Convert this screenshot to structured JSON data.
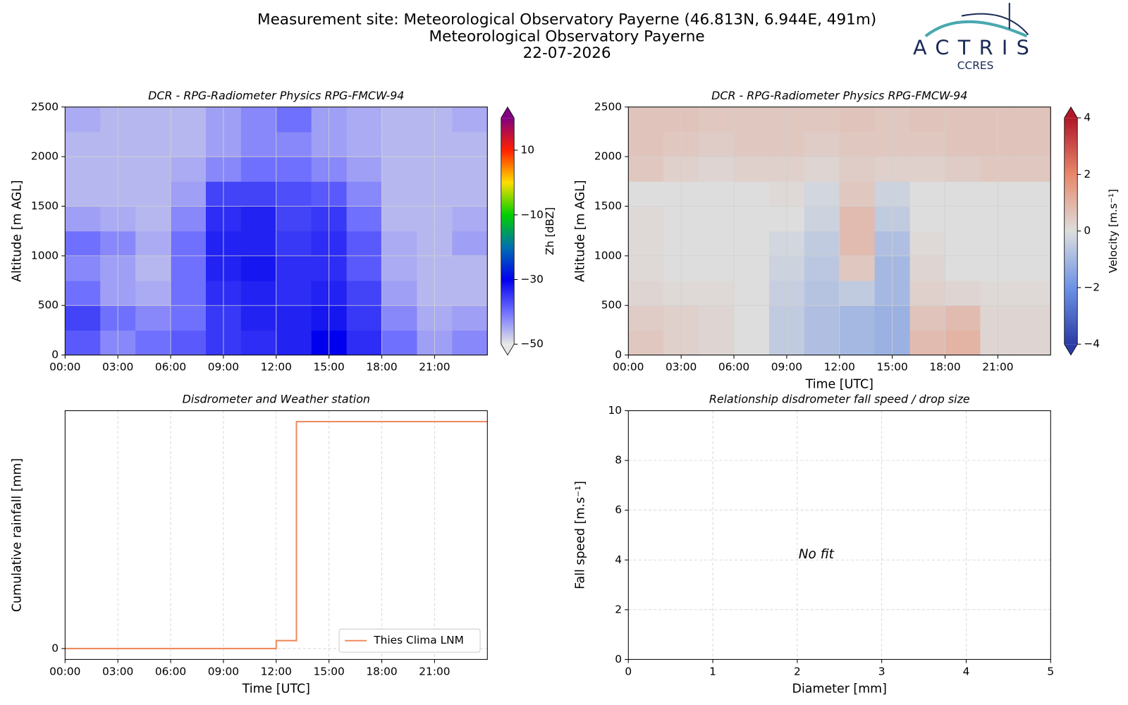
{
  "header": {
    "title_lines": [
      "Measurement site: Meteorological Observatory Payerne (46.813N, 6.944E, 491m)",
      "Meteorological Observatory Payerne",
      "22-07-2026"
    ],
    "logo": {
      "name": "ACTRIS",
      "subtitle": "CCRES"
    }
  },
  "chart_data": [
    {
      "type": "heatmap",
      "title": "DCR - RPG-Radiometer Physics RPG-FMCW-94",
      "ylabel": "Altitude [m AGL]",
      "xlim": [
        0,
        24
      ],
      "xticks": [
        {
          "value": 0,
          "label": "00:00"
        },
        {
          "value": 3,
          "label": "03:00"
        },
        {
          "value": 6,
          "label": "06:00"
        },
        {
          "value": 9,
          "label": "09:00"
        },
        {
          "value": 12,
          "label": "12:00"
        },
        {
          "value": 15,
          "label": "15:00"
        },
        {
          "value": 18,
          "label": "18:00"
        },
        {
          "value": 21,
          "label": "21:00"
        }
      ],
      "ylim": [
        0,
        2500
      ],
      "yticks": [
        0,
        500,
        1000,
        1500,
        2000,
        2500
      ],
      "grid": true,
      "grid_style": "solid",
      "xbins": [
        0,
        2,
        4,
        6,
        8,
        10,
        12,
        14,
        16,
        18,
        20,
        22,
        24
      ],
      "ybins": [
        0,
        250,
        500,
        750,
        1000,
        1250,
        1500,
        1750,
        2000,
        2250,
        2500
      ],
      "z": [
        [
          -38,
          -42,
          -40,
          -38,
          -35,
          -34,
          -33,
          -30,
          -34,
          -40,
          -44,
          -42
        ],
        [
          -36,
          -40,
          -42,
          -40,
          -35,
          -33,
          -33,
          -32,
          -35,
          -42,
          -45,
          -44
        ],
        [
          -40,
          -44,
          -45,
          -40,
          -34,
          -33,
          -34,
          -33,
          -36,
          -44,
          -46,
          -46
        ],
        [
          -42,
          -44,
          -46,
          -40,
          -33,
          -32,
          -34,
          -34,
          -38,
          -45,
          -46,
          -46
        ],
        [
          -40,
          -42,
          -45,
          -40,
          -33,
          -33,
          -35,
          -34,
          -38,
          -45,
          -46,
          -44
        ],
        [
          -44,
          -45,
          -46,
          -42,
          -34,
          -33,
          -36,
          -35,
          -40,
          -46,
          -46,
          -45
        ],
        [
          -46,
          -46,
          -46,
          -44,
          -36,
          -36,
          -37,
          -38,
          -42,
          -46,
          -46,
          -46
        ],
        [
          -46,
          -46,
          -46,
          -45,
          -42,
          -40,
          -40,
          -42,
          -44,
          -46,
          -46,
          -46
        ],
        [
          -46,
          -46,
          -46,
          -46,
          -44,
          -42,
          -42,
          -44,
          -45,
          -46,
          -46,
          -46
        ],
        [
          -45,
          -46,
          -46,
          -46,
          -44,
          -42,
          -40,
          -44,
          -45,
          -46,
          -46,
          -45
        ]
      ],
      "colorbar": {
        "label": "Zh [dBZ]",
        "lim": [
          -50,
          20
        ],
        "ticks": [
          {
            "value": -50,
            "label": "−50"
          },
          {
            "value": -30,
            "label": "−30"
          },
          {
            "value": -10,
            "label": "−10"
          },
          10
        ],
        "extend": "both",
        "colors": [
          "#e6e6e6",
          "#7070ff",
          "#0000ee",
          "#0070b0",
          "#00d000",
          "#ffdd00",
          "#ff2000",
          "#800080"
        ]
      }
    },
    {
      "type": "heatmap",
      "title": "DCR - RPG-Radiometer Physics RPG-FMCW-94",
      "ylabel": "Altitude [m AGL]",
      "xlabel": "Time [UTC]",
      "xlim": [
        0,
        24
      ],
      "xticks": [
        {
          "value": 0,
          "label": "00:00"
        },
        {
          "value": 3,
          "label": "03:00"
        },
        {
          "value": 6,
          "label": "06:00"
        },
        {
          "value": 9,
          "label": "09:00"
        },
        {
          "value": 12,
          "label": "12:00"
        },
        {
          "value": 15,
          "label": "15:00"
        },
        {
          "value": 18,
          "label": "18:00"
        },
        {
          "value": 21,
          "label": "21:00"
        }
      ],
      "ylim": [
        0,
        2500
      ],
      "yticks": [
        0,
        500,
        1000,
        1500,
        2000,
        2500
      ],
      "grid": true,
      "grid_style": "solid",
      "xbins": [
        0,
        2,
        4,
        6,
        8,
        10,
        12,
        14,
        16,
        18,
        20,
        22,
        24
      ],
      "ybins": [
        0,
        250,
        500,
        750,
        1000,
        1250,
        1500,
        1750,
        2000,
        2250,
        2500
      ],
      "z": [
        [
          0.5,
          0.3,
          0.2,
          0,
          -0.5,
          -0.8,
          -1,
          -1.2,
          0.8,
          1,
          0.2,
          0.2
        ],
        [
          0.4,
          0.3,
          0.2,
          0,
          -0.5,
          -0.8,
          -1,
          -1.2,
          0.6,
          0.8,
          0.2,
          0.2
        ],
        [
          0.2,
          0.1,
          0.1,
          0,
          -0.4,
          -0.7,
          -0.5,
          -1,
          0.3,
          0.2,
          0.1,
          0.1
        ],
        [
          0.1,
          0,
          0,
          0,
          -0.3,
          -0.6,
          0.5,
          -1,
          0.2,
          0,
          0,
          0
        ],
        [
          0.1,
          0,
          0,
          0,
          -0.2,
          -0.5,
          0.8,
          -0.8,
          0.1,
          0,
          0,
          0
        ],
        [
          0.1,
          0,
          0,
          0,
          0,
          -0.3,
          0.8,
          -0.5,
          0,
          0,
          0,
          0
        ],
        [
          0,
          0,
          0,
          0,
          0.1,
          -0.2,
          0.5,
          -0.3,
          0,
          0,
          0,
          0
        ],
        [
          0.5,
          0.3,
          0.2,
          0.3,
          0.3,
          0.2,
          0.4,
          0.3,
          0.3,
          0.4,
          0.5,
          0.5
        ],
        [
          0.6,
          0.5,
          0.4,
          0.5,
          0.5,
          0.4,
          0.5,
          0.5,
          0.5,
          0.6,
          0.6,
          0.6
        ],
        [
          0.6,
          0.6,
          0.5,
          0.5,
          0.5,
          0.5,
          0.6,
          0.5,
          0.6,
          0.6,
          0.6,
          0.6
        ]
      ],
      "colorbar": {
        "label": "Velocity [m.s⁻¹]",
        "lim": [
          -4,
          4
        ],
        "ticks": [
          {
            "value": -4,
            "label": "−4"
          },
          {
            "value": -2,
            "label": "−2"
          },
          0,
          2,
          4
        ],
        "extend": "both",
        "colors": [
          "#2c3ca6",
          "#6d93e6",
          "#dddddd",
          "#e8886a",
          "#b0172a"
        ]
      }
    },
    {
      "type": "line",
      "title": "Disdrometer and Weather station",
      "xlabel": "Time [UTC]",
      "ylabel": "Cumulative rainfall [mm]",
      "xlim": [
        0,
        24
      ],
      "xticks": [
        {
          "value": 0,
          "label": "00:00"
        },
        {
          "value": 3,
          "label": "03:00"
        },
        {
          "value": 6,
          "label": "06:00"
        },
        {
          "value": 9,
          "label": "09:00"
        },
        {
          "value": 12,
          "label": "12:00"
        },
        {
          "value": 15,
          "label": "15:00"
        },
        {
          "value": 18,
          "label": "18:00"
        },
        {
          "value": 21,
          "label": "21:00"
        }
      ],
      "ylim": [
        -0.048,
        1.048
      ],
      "yticks": [
        0
      ],
      "grid": true,
      "grid_style": "dashed",
      "legend": "lower right",
      "series": [
        {
          "name": "Thies Clima LNM",
          "color": "#ef8a5e",
          "x": [
            0,
            12,
            12,
            13.15,
            13.15,
            24
          ],
          "values": [
            0,
            0,
            0.035,
            0.035,
            1,
            1
          ]
        }
      ]
    },
    {
      "type": "scatter",
      "title": "Relationship disdrometer fall speed / drop size",
      "xlabel": "Diameter [mm]",
      "ylabel": "Fall speed [m.s⁻¹]",
      "xlim": [
        0,
        5
      ],
      "xticks": [
        0,
        1,
        2,
        3,
        4,
        5
      ],
      "ylim": [
        0,
        10
      ],
      "yticks": [
        0,
        2,
        4,
        6,
        8,
        10
      ],
      "grid": true,
      "grid_style": "dashed",
      "annotation": "No fit",
      "series": []
    }
  ]
}
